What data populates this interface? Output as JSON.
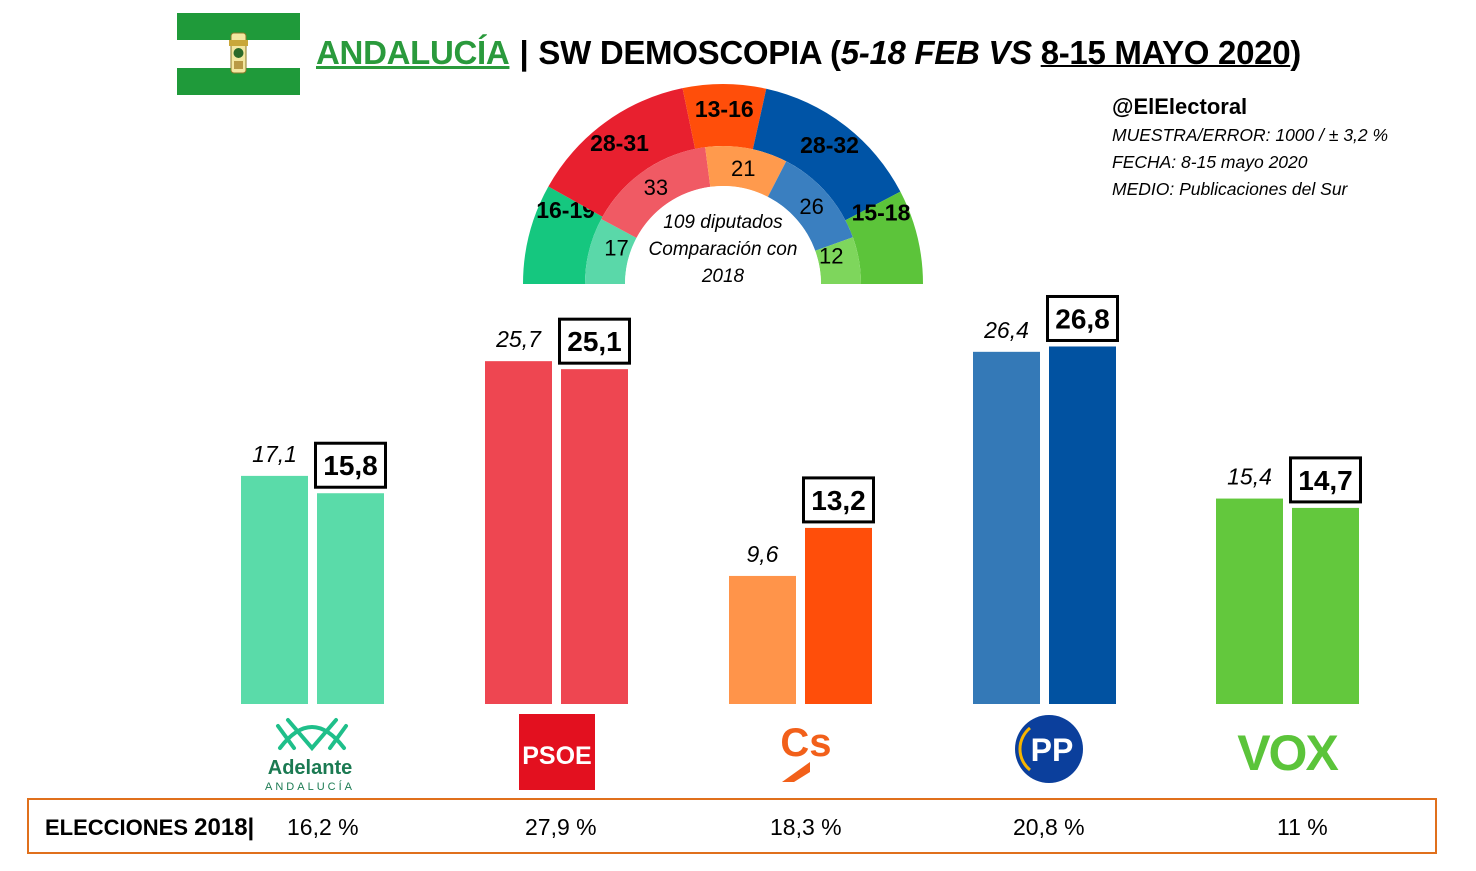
{
  "header": {
    "region": "ANDALUCÍA",
    "separator": "|",
    "pollster": "SW DEMOSCOPIA",
    "period_open": "(",
    "period_old": "5-18 FEB VS",
    "period_new": "8-15 MAYO 2020",
    "period_close": ")"
  },
  "info": {
    "handle": "@ElElectoral",
    "sample": "MUESTRA/ERROR:  1000 / ± 3,2 %",
    "date": "FECHA: 8-15 mayo 2020",
    "medium": "MEDIO: Publicaciones del Sur"
  },
  "colors": {
    "adelante_2018": "#5ad8a9",
    "adelante_now": "#15c77f",
    "psoe_2018": "#f05a64",
    "psoe_now": "#e8202f",
    "cs_2018": "#ff9a4d",
    "cs_now": "#ff4e0a",
    "pp_2018": "#3a7fc0",
    "pp_now": "#0054a6",
    "vox_2018": "#7ed65c",
    "vox_now": "#5cc43a",
    "bar_adelante": "#5adba9",
    "bar_psoe": "#ee4651",
    "bar_cs_old": "#ff944a",
    "bar_cs_new": "#ff4e0a",
    "bar_pp_old": "#3479b7",
    "bar_pp_new": "#0152a1",
    "bar_vox": "#63c83d",
    "results_border": "#e0701c"
  },
  "chart_data": [
    {
      "type": "pie",
      "subtype": "semicircle-parliament",
      "center_label": [
        "109 diputados",
        "Comparación con",
        "2018"
      ],
      "seats_projection": [
        {
          "party": "Adelante Andalucía",
          "range": "16-19",
          "color": "#15c77f"
        },
        {
          "party": "PSOE",
          "range": "28-31",
          "color": "#e8202f"
        },
        {
          "party": "Cs",
          "range": "13-16",
          "color": "#ff4e0a"
        },
        {
          "party": "PP",
          "range": "28-32",
          "color": "#0054a6"
        },
        {
          "party": "VOX",
          "range": "15-18",
          "color": "#5cc43a"
        }
      ],
      "seats_2018": [
        {
          "party": "Adelante Andalucía",
          "seats": 17,
          "color": "#5ad8a9"
        },
        {
          "party": "PSOE",
          "seats": 33,
          "color": "#f05a64"
        },
        {
          "party": "Cs",
          "seats": 21,
          "color": "#ff9a4d"
        },
        {
          "party": "PP",
          "seats": 26,
          "color": "#3a7fc0"
        },
        {
          "party": "VOX",
          "seats": 12,
          "color": "#7ed65c"
        }
      ]
    },
    {
      "type": "bar",
      "categories": [
        "Adelante Andalucía",
        "PSOE",
        "Cs",
        "PP",
        "VOX"
      ],
      "series": [
        {
          "values": [
            17.1,
            25.7,
            9.6,
            26.4,
            15.4
          ],
          "labels": [
            "17,1",
            "25,7",
            "9,6",
            "26,4",
            "15,4"
          ],
          "label_style": "italic"
        },
        {
          "values": [
            15.8,
            25.1,
            13.2,
            26.8,
            14.7
          ],
          "labels": [
            "15,8",
            "25,1",
            "13,2",
            "26,8",
            "14,7"
          ],
          "label_style": "boxed-bold"
        }
      ],
      "ylim": [
        0,
        30
      ],
      "grid": false
    }
  ],
  "logos": {
    "adelante_name": "Adelante",
    "adelante_sub": "ANDALUCÍA",
    "psoe": "PSOE",
    "cs": "Cs",
    "pp": "PP",
    "vox": "VOX"
  },
  "results_2018": {
    "label": "ELECCIONES",
    "year": "2018",
    "sep": "|",
    "values": [
      "16,2 %",
      "27,9 %",
      "18,3 %",
      "20,8 %",
      "11 %"
    ]
  }
}
